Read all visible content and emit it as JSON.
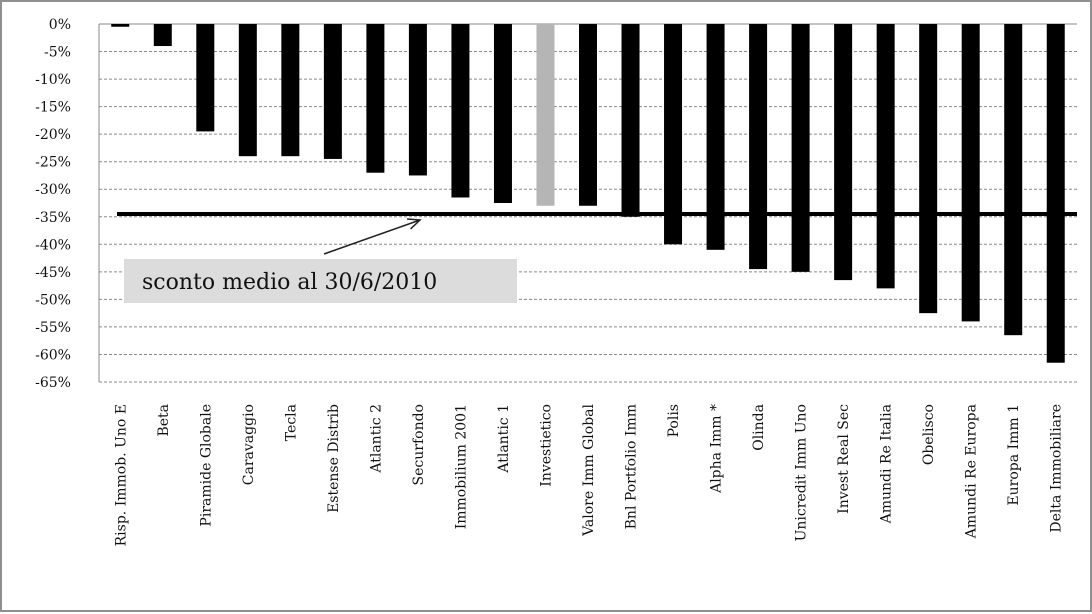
{
  "chart_data": {
    "type": "bar",
    "title": "",
    "xlabel": "",
    "ylabel": "",
    "ylim": [
      -65,
      0
    ],
    "ytick_step": 5,
    "ytick_format": "percent",
    "grid": true,
    "categories": [
      "Risp. Immob. Uno E",
      "Beta",
      "Piramide Globale",
      "Caravaggio",
      "Tecla",
      "Estense Distrib",
      "Atlantic 2",
      "Securfondo",
      "Immobilium 2001",
      "Atlantic 1",
      "Investietico",
      "Valore Imm Global",
      "Bnl Portfolio Imm",
      "Polis",
      "Alpha Imm *",
      "Olinda",
      "Unicredit Imm Uno",
      "Invest Real Sec",
      "Amundi Re Italia",
      "Obelisco",
      "Amundi Re Europa",
      "Europa Imm 1",
      "Delta Immobiliare"
    ],
    "values": [
      -0.5,
      -4,
      -19.5,
      -24,
      -24,
      -24.5,
      -27,
      -27.5,
      -31.5,
      -32.5,
      -33,
      -33,
      -35,
      -40,
      -41,
      -44.5,
      -45,
      -46.5,
      -48,
      -52.5,
      -54,
      -56.5,
      -61.5
    ],
    "colors": {
      "default": "#000000",
      "highlight": "#b5b5b5",
      "highlight_index": 10
    },
    "reference_line": {
      "value": -34.5,
      "label": "sconto medio al 30/6/2010",
      "color": "#000000",
      "label_background": "#dcdcdc"
    }
  }
}
